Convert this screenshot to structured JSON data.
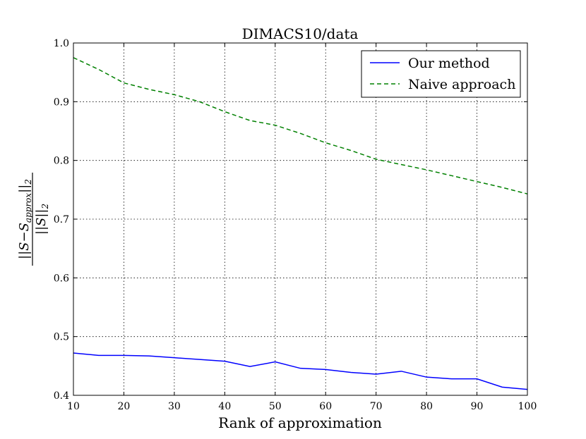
{
  "chart_data": {
    "type": "line",
    "title": "DIMACS10/data",
    "xlabel": "Rank of approximation",
    "ylabel": {
      "numerator": "||S−S_approx||_2",
      "numerator_main": "||S−S",
      "numerator_sub": "approx",
      "numerator_end": "||",
      "numerator_end_sub": "2",
      "denominator": "||S||_2",
      "denominator_main": "||S||",
      "denominator_sub": "2"
    },
    "xlim": [
      10,
      100
    ],
    "ylim": [
      0.4,
      1.0
    ],
    "xticks": [
      10,
      20,
      30,
      40,
      50,
      60,
      70,
      80,
      90,
      100
    ],
    "yticks": [
      0.4,
      0.5,
      0.6,
      0.7,
      0.8,
      0.9,
      1.0
    ],
    "xtick_labels": [
      "10",
      "20",
      "30",
      "40",
      "50",
      "60",
      "70",
      "80",
      "90",
      "100"
    ],
    "ytick_labels": [
      "0.4",
      "0.5",
      "0.6",
      "0.7",
      "0.8",
      "0.9",
      "1.0"
    ],
    "grid": true,
    "legend_position": "top-right",
    "x": [
      10,
      15,
      20,
      25,
      30,
      35,
      40,
      45,
      50,
      55,
      60,
      65,
      70,
      75,
      80,
      85,
      90,
      95,
      100
    ],
    "series": [
      {
        "name": "Our method",
        "color": "#0000ff",
        "style": "solid",
        "values": [
          0.472,
          0.468,
          0.468,
          0.467,
          0.464,
          0.461,
          0.458,
          0.449,
          0.457,
          0.446,
          0.444,
          0.439,
          0.436,
          0.441,
          0.431,
          0.428,
          0.428,
          0.414,
          0.41
        ]
      },
      {
        "name": "Naive approach",
        "color": "#008000",
        "style": "dashed",
        "values": [
          0.975,
          0.955,
          0.932,
          0.921,
          0.912,
          0.9,
          0.883,
          0.868,
          0.86,
          0.846,
          0.83,
          0.817,
          0.802,
          0.793,
          0.784,
          0.774,
          0.764,
          0.754,
          0.743
        ]
      }
    ]
  }
}
